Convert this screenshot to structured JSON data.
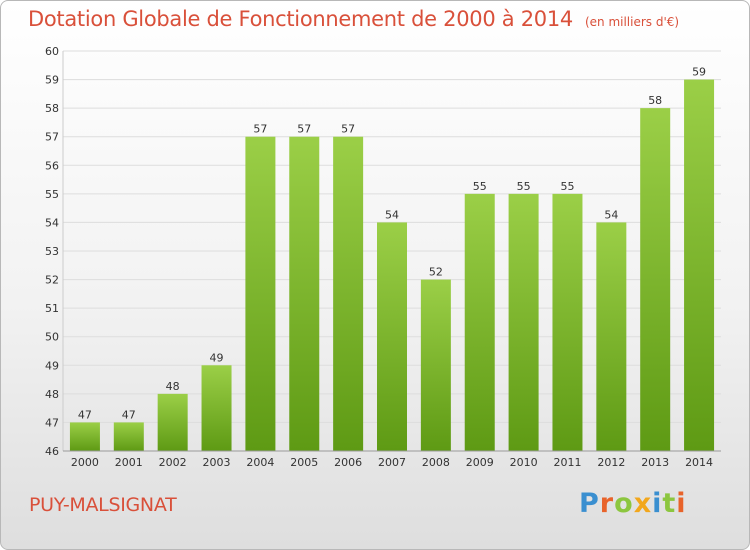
{
  "header": {
    "title": "Dotation Globale de Fonctionnement de 2000 à 2014",
    "unit": "(en milliers d'€)"
  },
  "footer": {
    "commune": "PUY-MALSIGNAT",
    "logo_text": "Proxiti"
  },
  "colors": {
    "title": "#d9503a",
    "bar_top": "#9bcf47",
    "bar_bottom": "#5e9a14",
    "gridline": "#dddddd",
    "logo": [
      "#3a8fd0",
      "#e8632a",
      "#8cc63f",
      "#f2a71c",
      "#3a8fd0",
      "#8cc63f",
      "#e8632a"
    ]
  },
  "chart_data": {
    "type": "bar",
    "title": "Dotation Globale de Fonctionnement de 2000 à 2014",
    "subtitle": "(en milliers d'€)",
    "categories": [
      "2000",
      "2001",
      "2002",
      "2003",
      "2004",
      "2005",
      "2006",
      "2007",
      "2008",
      "2009",
      "2010",
      "2011",
      "2012",
      "2013",
      "2014"
    ],
    "values": [
      47,
      47,
      48,
      49,
      57,
      57,
      57,
      54,
      52,
      55,
      55,
      55,
      54,
      58,
      59
    ],
    "ylim": [
      46,
      60
    ],
    "yticks": [
      46,
      47,
      48,
      49,
      50,
      51,
      52,
      53,
      54,
      55,
      56,
      57,
      58,
      59,
      60
    ],
    "grid": true,
    "legend": "none"
  }
}
